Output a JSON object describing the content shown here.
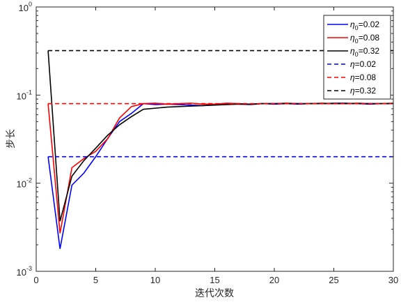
{
  "chart_data": {
    "type": "line",
    "xlabel": "迭代次数",
    "ylabel": "步长",
    "xlim": [
      0,
      30
    ],
    "ylim": [
      0.001,
      1
    ],
    "yscale": "log",
    "xticks": [
      "0",
      "5",
      "10",
      "15",
      "20",
      "25",
      "30"
    ],
    "xtick_values": [
      0,
      5,
      10,
      15,
      20,
      25,
      30
    ],
    "yticks": [
      {
        "value": 1,
        "base": "10",
        "exp": "0"
      },
      {
        "value": 0.1,
        "base": "10",
        "exp": "-1"
      },
      {
        "value": 0.01,
        "base": "10",
        "exp": "-2"
      },
      {
        "value": 0.001,
        "base": "10",
        "exp": "-3"
      }
    ],
    "legend_position": "top-right",
    "grid": false,
    "series": [
      {
        "sym": "η",
        "sub": "0",
        "val": "=0.02",
        "color": "#0000ff",
        "dash": "solid",
        "x": [
          1,
          2,
          3,
          4,
          5,
          6,
          7,
          8,
          9,
          10,
          11,
          12,
          13,
          14,
          15,
          16,
          17,
          18,
          19,
          20,
          21,
          22,
          23,
          24,
          25,
          26,
          27,
          28,
          29,
          30
        ],
        "y": [
          0.02,
          0.0018,
          0.0095,
          0.013,
          0.02,
          0.032,
          0.05,
          0.062,
          0.08,
          0.078,
          0.079,
          0.078,
          0.077,
          0.076,
          0.078,
          0.08,
          0.079,
          0.078,
          0.08,
          0.079,
          0.08,
          0.079,
          0.08,
          0.08,
          0.081,
          0.081,
          0.08,
          0.079,
          0.08,
          0.08
        ]
      },
      {
        "sym": "η",
        "sub": "0",
        "val": "=0.08",
        "color": "#ff0000",
        "dash": "solid",
        "x": [
          1,
          2,
          3,
          4,
          5,
          6,
          7,
          8,
          9,
          10,
          11,
          12,
          13,
          14,
          15,
          16,
          17,
          18,
          19,
          20,
          21,
          22,
          23,
          24,
          25,
          26,
          27,
          28,
          29,
          30
        ],
        "y": [
          0.08,
          0.0027,
          0.015,
          0.019,
          0.023,
          0.032,
          0.055,
          0.074,
          0.08,
          0.081,
          0.079,
          0.08,
          0.081,
          0.079,
          0.079,
          0.081,
          0.08,
          0.079,
          0.08,
          0.08,
          0.081,
          0.08,
          0.08,
          0.081,
          0.08,
          0.08,
          0.081,
          0.08,
          0.08,
          0.081
        ]
      },
      {
        "sym": "η",
        "sub": "0",
        "val": "=0.32",
        "color": "#000000",
        "dash": "solid",
        "x": [
          1,
          2,
          3,
          4,
          5,
          6,
          7,
          8,
          9,
          10,
          11,
          12,
          13,
          14,
          15,
          16,
          17,
          18,
          19,
          20,
          21,
          22,
          23,
          24,
          25,
          26,
          27,
          28,
          29,
          30
        ],
        "y": [
          0.32,
          0.0037,
          0.012,
          0.018,
          0.025,
          0.035,
          0.046,
          0.057,
          0.069,
          0.071,
          0.073,
          0.074,
          0.075,
          0.076,
          0.077,
          0.078,
          0.079,
          0.079,
          0.08,
          0.08,
          0.08,
          0.08,
          0.08,
          0.08,
          0.08,
          0.08,
          0.08,
          0.08,
          0.08,
          0.08
        ]
      },
      {
        "sym": "η",
        "sub": "",
        "val": "=0.02",
        "color": "#0000ff",
        "dash": "dashed",
        "x": [
          1,
          30
        ],
        "y": [
          0.02,
          0.02
        ]
      },
      {
        "sym": "η",
        "sub": "",
        "val": "=0.08",
        "color": "#ff0000",
        "dash": "dashed",
        "x": [
          1,
          30
        ],
        "y": [
          0.08,
          0.08
        ]
      },
      {
        "sym": "η",
        "sub": "",
        "val": "=0.32",
        "color": "#000000",
        "dash": "dashed",
        "x": [
          1,
          30
        ],
        "y": [
          0.32,
          0.32
        ]
      }
    ]
  }
}
